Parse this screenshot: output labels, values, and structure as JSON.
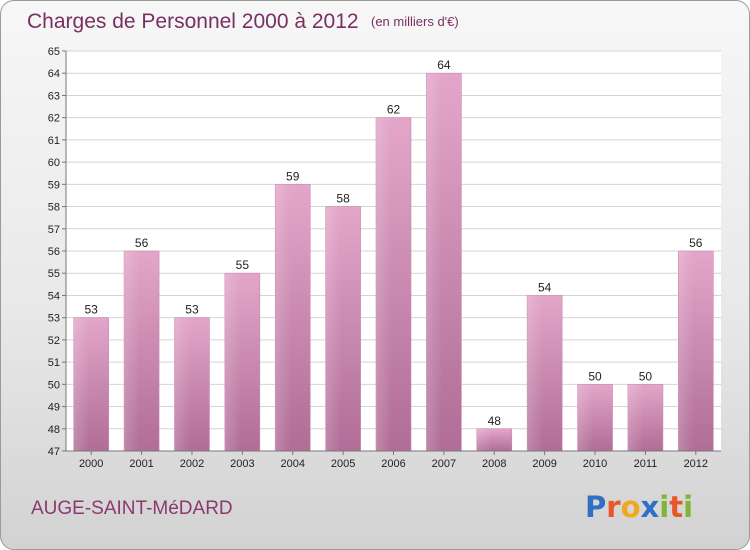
{
  "chart_data": {
    "type": "bar",
    "title": "Charges de Personnel 2000 à 2012",
    "subtitle": "(en milliers d'€)",
    "categories": [
      "2000",
      "2001",
      "2002",
      "2003",
      "2004",
      "2005",
      "2006",
      "2007",
      "2008",
      "2009",
      "2010",
      "2011",
      "2012"
    ],
    "values": [
      53,
      56,
      53,
      55,
      59,
      58,
      62,
      64,
      48,
      54,
      50,
      50,
      56
    ],
    "ylim": [
      47,
      65
    ],
    "yticks": [
      47,
      48,
      49,
      50,
      51,
      52,
      53,
      54,
      55,
      56,
      57,
      58,
      59,
      60,
      61,
      62,
      63,
      64,
      65
    ],
    "xlabel": "",
    "ylabel": "",
    "grid": true,
    "bar_color": "#d07fae"
  },
  "footer": {
    "commune": "AUGE-SAINT-MéDARD",
    "logo_letters": [
      "P",
      "r",
      "o",
      "x",
      "i",
      "t",
      "i"
    ],
    "logo_colors": [
      "#2f6fc4",
      "#e8562a",
      "#f0a81c",
      "#2f6fc4",
      "#7fb539",
      "#e8562a",
      "#7fb539"
    ]
  }
}
